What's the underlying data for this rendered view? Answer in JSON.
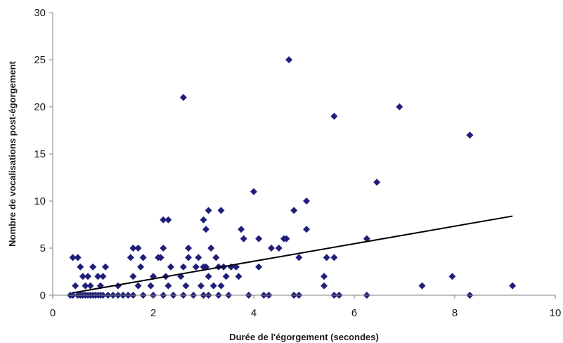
{
  "chart_data": {
    "type": "scatter",
    "xlabel": "Durée de l'égorgement (secondes)",
    "ylabel": "Nombre de vocalisations post-égorgement",
    "xlim": [
      0,
      10
    ],
    "ylim": [
      0,
      30
    ],
    "x_ticks": [
      0,
      2,
      4,
      6,
      8,
      10
    ],
    "y_ticks": [
      0,
      5,
      10,
      15,
      20,
      25,
      30
    ],
    "x_tick_labels": [
      "0",
      "2",
      "4",
      "6",
      "8",
      "10"
    ],
    "y_tick_labels": [
      "0",
      "5",
      "10",
      "15",
      "20",
      "25",
      "30"
    ],
    "grid": false,
    "legend": "none",
    "marker_color": "#1f1f7a",
    "trendline_color": "#000000",
    "trendline": {
      "x": [
        0.4,
        9.15
      ],
      "y": [
        0.25,
        8.4
      ]
    },
    "series": [
      {
        "x": [
          4.7,
          2.6,
          6.9,
          5.6,
          8.3,
          6.45,
          4.0,
          3.1,
          3.35,
          4.8,
          5.05,
          2.2,
          2.3,
          3.0,
          3.05,
          3.75,
          5.05,
          4.6,
          2.7,
          3.15,
          3.8,
          4.1,
          6.25,
          0.4,
          0.5,
          1.6,
          1.7,
          2.2,
          2.7,
          4.35,
          4.5,
          4.65,
          4.9,
          5.45,
          5.6,
          1.55,
          1.8,
          2.1,
          2.15,
          2.9,
          3.05,
          3.25,
          3.65,
          0.55,
          0.8,
          1.05,
          1.75,
          2.35,
          2.6,
          2.85,
          3.0,
          3.3,
          3.4,
          3.55,
          4.1,
          0.6,
          0.7,
          0.9,
          1.0,
          1.6,
          2.0,
          2.25,
          2.55,
          3.1,
          3.45,
          3.7,
          5.4,
          7.95,
          0.45,
          0.65,
          0.75,
          0.95,
          1.3,
          1.7,
          1.95,
          2.3,
          2.65,
          2.95,
          3.2,
          3.35,
          5.4,
          7.35,
          9.15,
          0.35,
          0.4,
          0.5,
          0.55,
          0.6,
          0.65,
          0.7,
          0.75,
          0.8,
          0.85,
          0.9,
          0.95,
          1.0,
          1.1,
          1.2,
          1.3,
          1.4,
          1.5,
          1.6,
          1.8,
          2.0,
          2.2,
          2.4,
          2.6,
          2.8,
          3.0,
          3.1,
          3.3,
          3.5,
          3.9,
          4.2,
          4.3,
          4.8,
          4.9,
          5.6,
          5.7,
          6.25,
          8.3
        ],
        "y": [
          25,
          21,
          20,
          19,
          17,
          12,
          11,
          9,
          9,
          9,
          10,
          8,
          8,
          8,
          7,
          7,
          7,
          6,
          5,
          5,
          6,
          6,
          6,
          4,
          4,
          5,
          5,
          5,
          4,
          5,
          5,
          6,
          4,
          4,
          4,
          4,
          4,
          4,
          4,
          4,
          3,
          4,
          3,
          3,
          3,
          3,
          3,
          3,
          3,
          3,
          3,
          3,
          3,
          3,
          3,
          2,
          2,
          2,
          2,
          2,
          2,
          2,
          2,
          2,
          2,
          2,
          2,
          2,
          1,
          1,
          1,
          1,
          1,
          1,
          1,
          1,
          1,
          1,
          1,
          1,
          1,
          1,
          1,
          0,
          0,
          0,
          0,
          0,
          0,
          0,
          0,
          0,
          0,
          0,
          0,
          0,
          0,
          0,
          0,
          0,
          0,
          0,
          0,
          0,
          0,
          0,
          0,
          0,
          0,
          0,
          0,
          0,
          0,
          0,
          0,
          0,
          0,
          0,
          0,
          0,
          0
        ]
      }
    ]
  }
}
